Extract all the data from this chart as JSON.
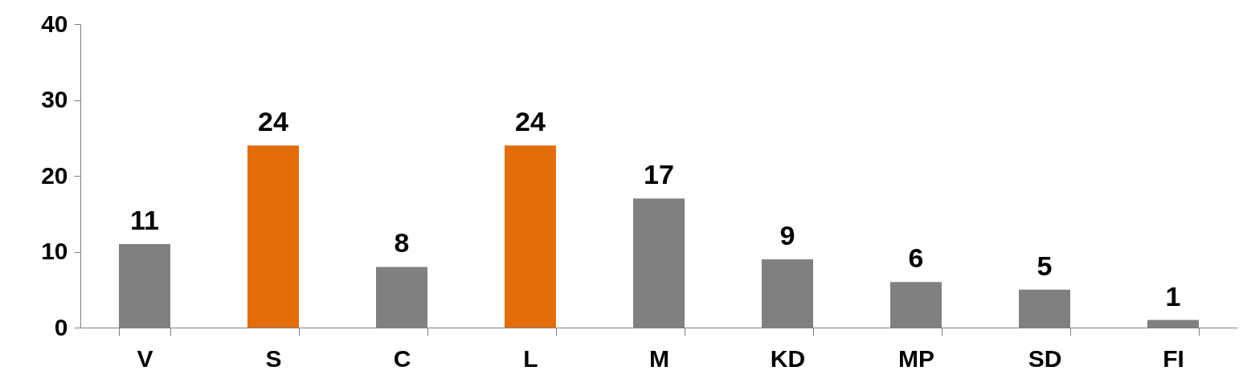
{
  "chart_data": {
    "type": "bar",
    "categories": [
      "V",
      "S",
      "C",
      "L",
      "M",
      "KD",
      "MP",
      "SD",
      "FI"
    ],
    "values": [
      11,
      24,
      8,
      24,
      17,
      9,
      6,
      5,
      1
    ],
    "colors": [
      "#808080",
      "#e36c0a",
      "#808080",
      "#e36c0a",
      "#808080",
      "#808080",
      "#808080",
      "#808080",
      "#808080"
    ],
    "ylim": [
      0,
      40
    ],
    "yticks": [
      0,
      10,
      20,
      30,
      40
    ],
    "grid": false,
    "data_labels": true
  }
}
